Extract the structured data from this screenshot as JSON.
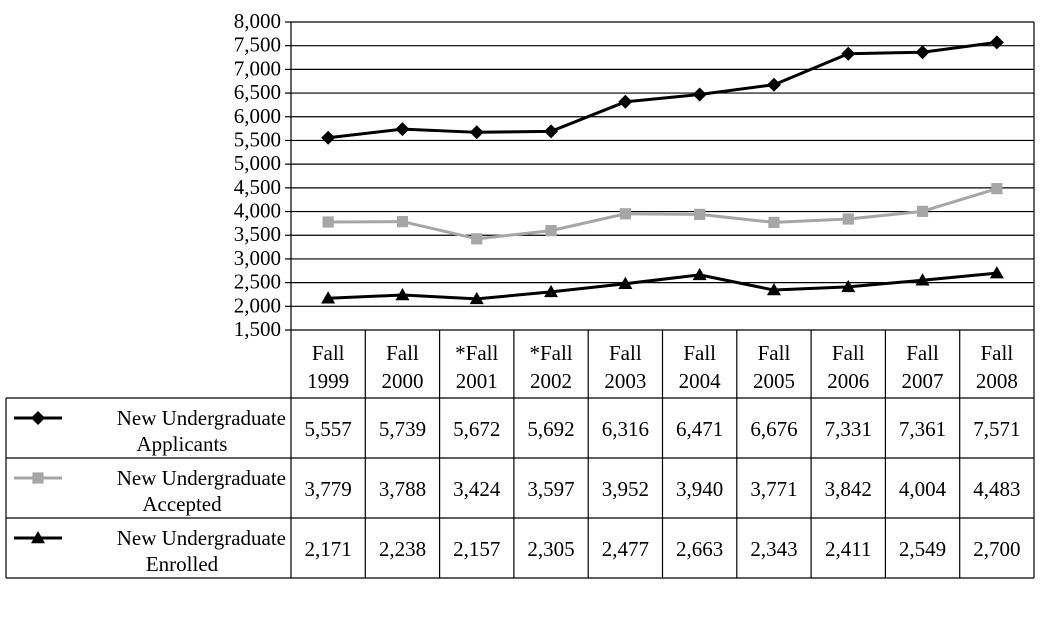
{
  "chart_data": {
    "type": "line",
    "categories": [
      [
        "Fall",
        "1999"
      ],
      [
        "Fall",
        "2000"
      ],
      [
        "*Fall",
        "2001"
      ],
      [
        "*Fall",
        "2002"
      ],
      [
        "Fall",
        "2003"
      ],
      [
        "Fall",
        "2004"
      ],
      [
        "Fall",
        "2005"
      ],
      [
        "Fall",
        "2006"
      ],
      [
        "Fall",
        "2007"
      ],
      [
        "Fall",
        "2008"
      ]
    ],
    "ylim": [
      1500,
      8000
    ],
    "y_ticks": [
      "1,500",
      "2,000",
      "2,500",
      "3,000",
      "3,500",
      "4,000",
      "4,500",
      "5,000",
      "5,500",
      "6,000",
      "6,500",
      "7,000",
      "7,500",
      "8,000"
    ],
    "gridlines": true,
    "legend": "data-table",
    "series": [
      {
        "name_lines": [
          "New Undergraduate",
          "Applicants"
        ],
        "marker": "diamond",
        "color": "#000000",
        "values": [
          5557,
          5739,
          5672,
          5692,
          6316,
          6471,
          6676,
          7331,
          7361,
          7571
        ],
        "labels": [
          "5,557",
          "5,739",
          "5,672",
          "5,692",
          "6,316",
          "6,471",
          "6,676",
          "7,331",
          "7,361",
          "7,571"
        ]
      },
      {
        "name_lines": [
          "New Undergraduate",
          "Accepted"
        ],
        "marker": "square",
        "color": "#a6a6a6",
        "values": [
          3779,
          3788,
          3424,
          3597,
          3952,
          3940,
          3771,
          3842,
          4004,
          4483
        ],
        "labels": [
          "3,779",
          "3,788",
          "3,424",
          "3,597",
          "3,952",
          "3,940",
          "3,771",
          "3,842",
          "4,004",
          "4,483"
        ]
      },
      {
        "name_lines": [
          "New Undergraduate",
          "Enrolled"
        ],
        "marker": "triangle",
        "color": "#000000",
        "values": [
          2171,
          2238,
          2157,
          2305,
          2477,
          2663,
          2343,
          2411,
          2549,
          2700
        ],
        "labels": [
          "2,171",
          "2,238",
          "2,157",
          "2,305",
          "2,477",
          "2,663",
          "2,343",
          "2,411",
          "2,549",
          "2,700"
        ]
      }
    ]
  }
}
